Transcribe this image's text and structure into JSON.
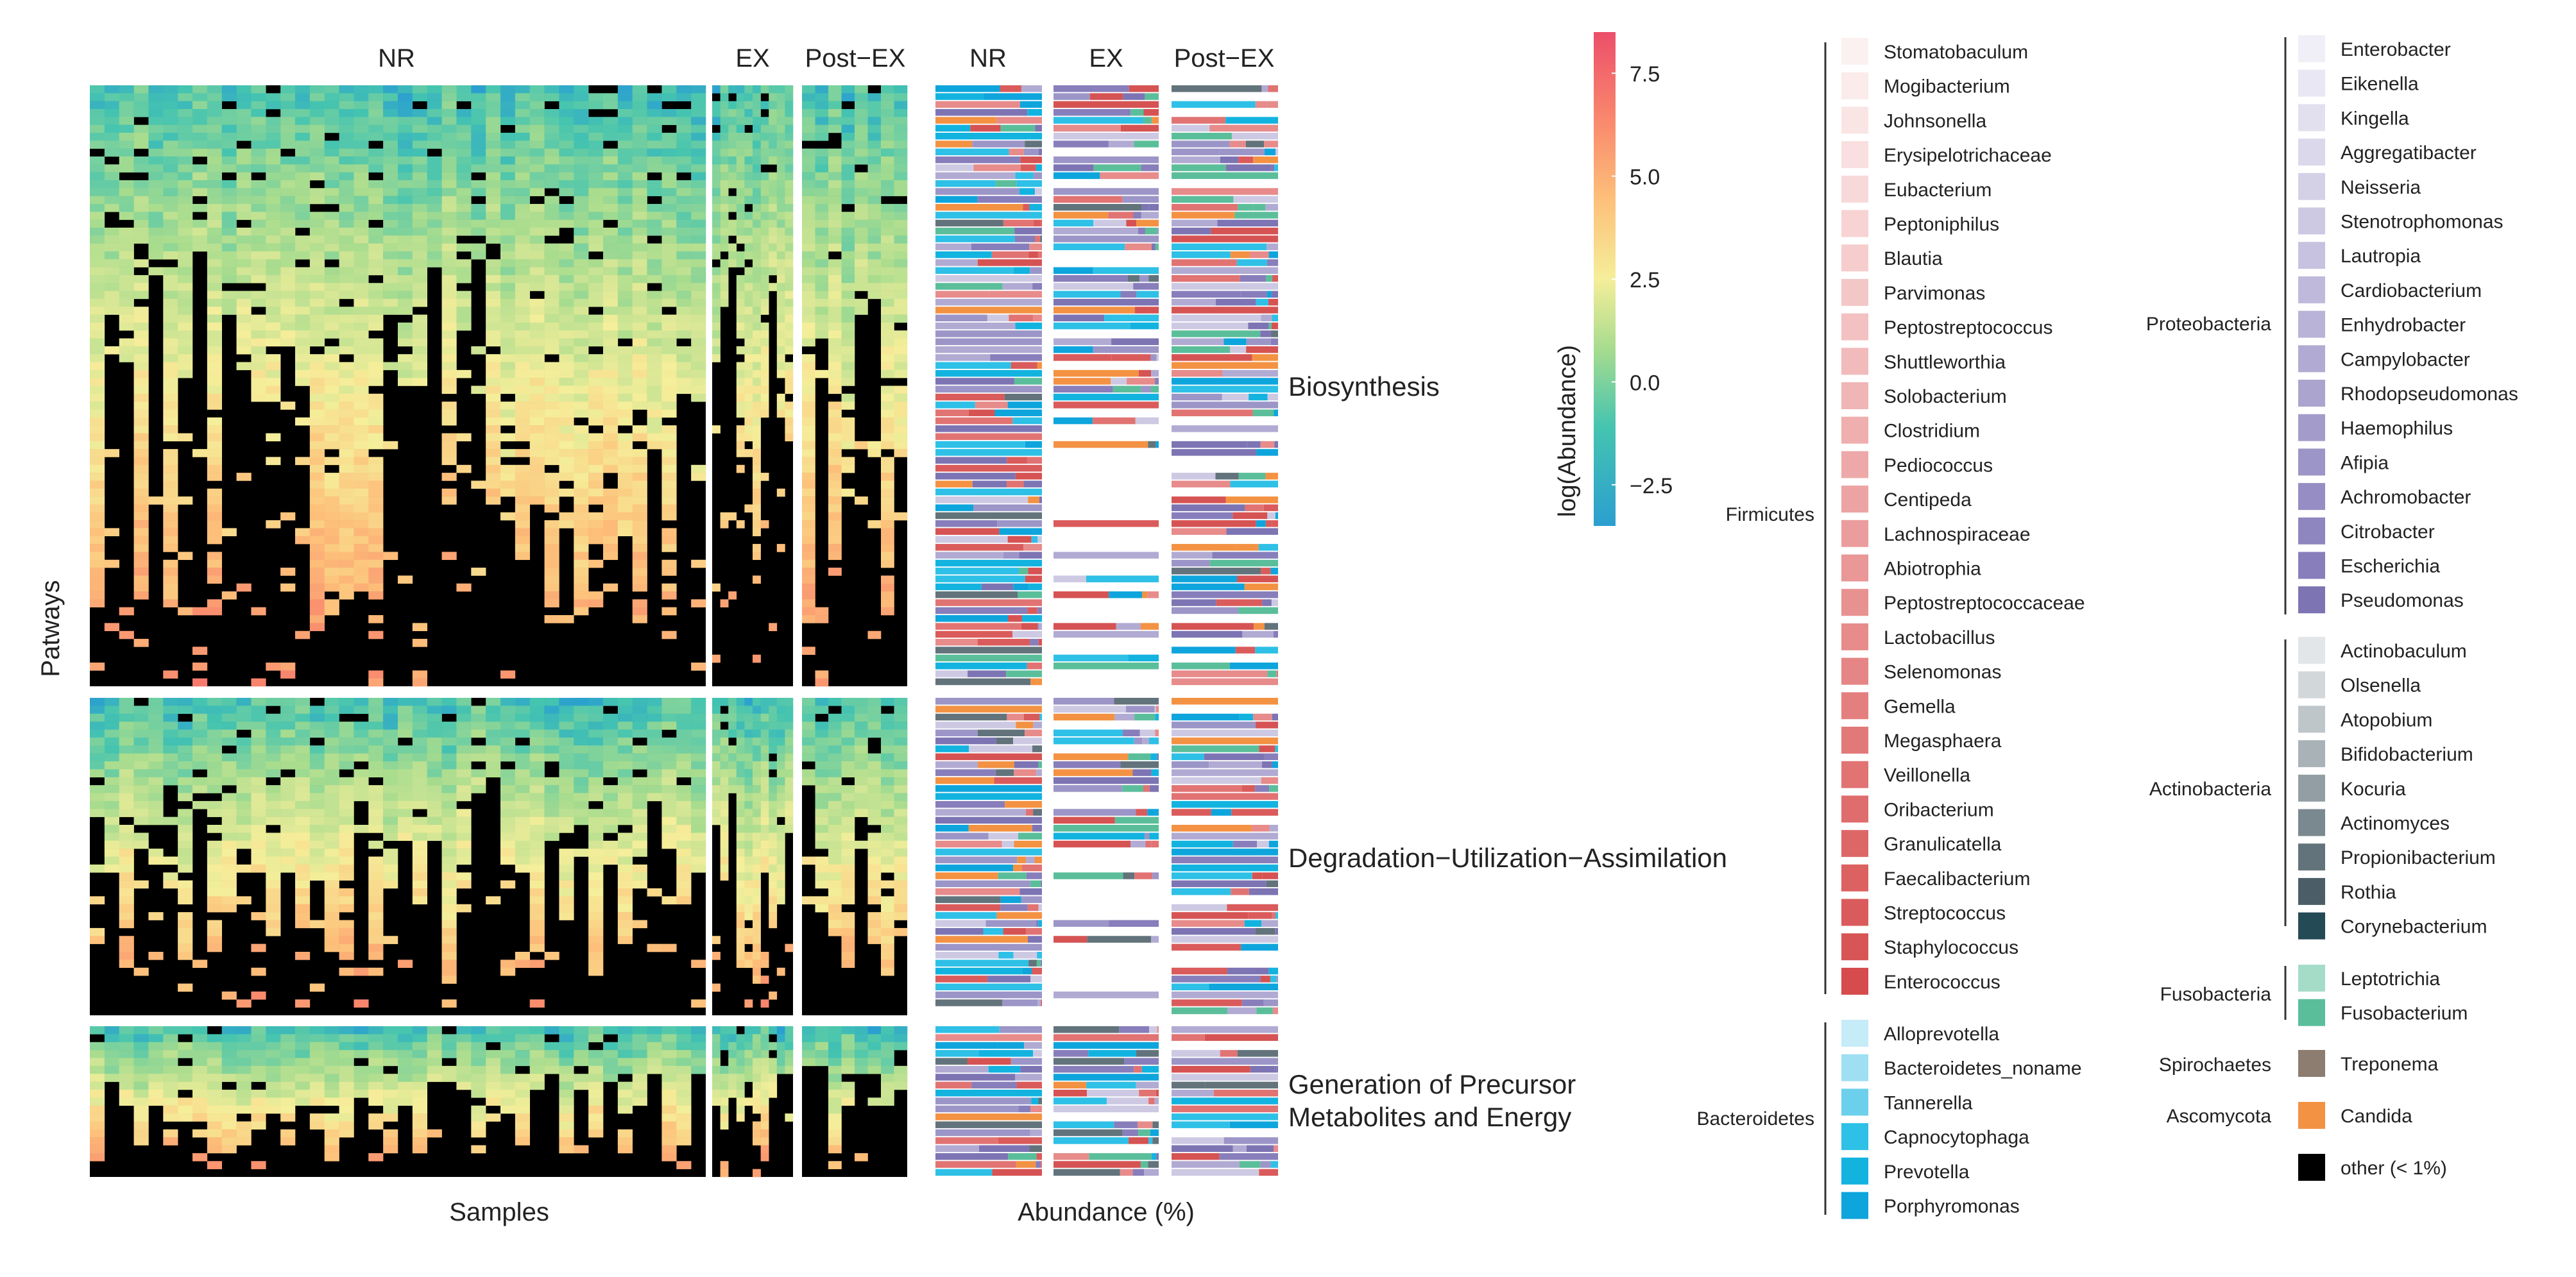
{
  "chart_data": [
    {
      "type": "heatmap",
      "title": "",
      "group_labels": [
        "NR",
        "EX",
        "Post−EX"
      ],
      "group_sample_counts": [
        42,
        10,
        8
      ],
      "row_sections": [
        {
          "name": "Biosynthesis",
          "rows": 76
        },
        {
          "name": "Degradation−Utilization−Assimilation",
          "rows": 40
        },
        {
          "name_lines": [
            "Generation of Precursor",
            "Metabolites and Energy"
          ],
          "rows": 19
        }
      ],
      "xlabel": "Samples",
      "ylabel": "Patways",
      "colorbar": {
        "title": "log(Abundance)",
        "ticks": [
          7.5,
          5.0,
          2.5,
          0.0,
          -2.5
        ],
        "tick_labels": [
          "7.5",
          "5.0",
          "2.5",
          "0.0",
          "−2.5"
        ],
        "range": [
          -3.5,
          8.5
        ],
        "colors": [
          "#2a9fd0",
          "#45c4b0",
          "#a8dc8e",
          "#f5ee9a",
          "#fdc07a",
          "#f9896d",
          "#ec4f6a"
        ]
      },
      "missing_color": "#000000"
    },
    {
      "type": "bar",
      "orientation": "horizontal-stacked",
      "group_labels": [
        "NR",
        "EX",
        "Post−EX"
      ],
      "xlabel": "Abundance (%)",
      "note": "Stacked bars per pathway showing contributing genus share (%), colored by genus legend."
    }
  ],
  "legend": {
    "phyla": [
      {
        "name": "Firmicutes",
        "genera": [
          {
            "name": "Stomatobaculum",
            "color": "#fcf1f1"
          },
          {
            "name": "Mogibacterium",
            "color": "#fbebeb"
          },
          {
            "name": "Johnsonella",
            "color": "#fae5e5"
          },
          {
            "name": "Erysipelotrichaceae",
            "color": "#f9dfdf"
          },
          {
            "name": "Eubacterium",
            "color": "#f8d9d9"
          },
          {
            "name": "Peptoniphilus",
            "color": "#f7d3d3"
          },
          {
            "name": "Blautia",
            "color": "#f5cdcd"
          },
          {
            "name": "Parvimonas",
            "color": "#f4c7c7"
          },
          {
            "name": "Peptostreptococcus",
            "color": "#f3c1c1"
          },
          {
            "name": "Shuttleworthia",
            "color": "#f1bbbb"
          },
          {
            "name": "Solobacterium",
            "color": "#f0b5b5"
          },
          {
            "name": "Clostridium",
            "color": "#efafaf"
          },
          {
            "name": "Pediococcus",
            "color": "#eda9a9"
          },
          {
            "name": "Centipeda",
            "color": "#eca3a3"
          },
          {
            "name": "Lachnospiraceae",
            "color": "#eb9d9d"
          },
          {
            "name": "Abiotrophia",
            "color": "#e99797"
          },
          {
            "name": "Peptostreptococcaceae",
            "color": "#e89191"
          },
          {
            "name": "Lactobacillus",
            "color": "#e78b8b"
          },
          {
            "name": "Selenomonas",
            "color": "#e58585"
          },
          {
            "name": "Gemella",
            "color": "#e47f7f"
          },
          {
            "name": "Megasphaera",
            "color": "#e27979"
          },
          {
            "name": "Veillonella",
            "color": "#e17373"
          },
          {
            "name": "Oribacterium",
            "color": "#df6d6d"
          },
          {
            "name": "Granulicatella",
            "color": "#dd6767"
          },
          {
            "name": "Faecalibacterium",
            "color": "#dc6161"
          },
          {
            "name": "Streptococcus",
            "color": "#da5b5b"
          },
          {
            "name": "Staphylococcus",
            "color": "#d85555"
          },
          {
            "name": "Enterococcus",
            "color": "#d64b4b"
          }
        ]
      },
      {
        "name": "Bacteroidetes",
        "genera": [
          {
            "name": "Alloprevotella",
            "color": "#c6ecf7"
          },
          {
            "name": "Bacteroidetes_noname",
            "color": "#9edff2"
          },
          {
            "name": "Tannerella",
            "color": "#6cd0ec"
          },
          {
            "name": "Capnocytophaga",
            "color": "#2ec0e6"
          },
          {
            "name": "Prevotella",
            "color": "#13b3e0"
          },
          {
            "name": "Porphyromonas",
            "color": "#0ea5dc"
          }
        ]
      },
      {
        "name": "Proteobacteria",
        "genera": [
          {
            "name": "Enterobacter",
            "color": "#f0eff7"
          },
          {
            "name": "Eikenella",
            "color": "#e9e7f3"
          },
          {
            "name": "Kingella",
            "color": "#e2e0ef"
          },
          {
            "name": "Aggregatibacter",
            "color": "#dbd8eb"
          },
          {
            "name": "Neisseria",
            "color": "#d4d1e7"
          },
          {
            "name": "Stenotrophomonas",
            "color": "#cdc9e3"
          },
          {
            "name": "Lautropia",
            "color": "#c6c2df"
          },
          {
            "name": "Cardiobacterium",
            "color": "#bfbadb"
          },
          {
            "name": "Enhydrobacter",
            "color": "#b8b3d7"
          },
          {
            "name": "Campylobacter",
            "color": "#b1abd3"
          },
          {
            "name": "Rhodopseudomonas",
            "color": "#aaa4cf"
          },
          {
            "name": "Haemophilus",
            "color": "#a39ccb"
          },
          {
            "name": "Afipia",
            "color": "#9c95c7"
          },
          {
            "name": "Achromobacter",
            "color": "#958dc3"
          },
          {
            "name": "Citrobacter",
            "color": "#8e86bf"
          },
          {
            "name": "Escherichia",
            "color": "#877ebb"
          },
          {
            "name": "Pseudomonas",
            "color": "#7d74b4"
          }
        ]
      },
      {
        "name": "Actinobacteria",
        "genera": [
          {
            "name": "Actinobaculum",
            "color": "#e3e6e8"
          },
          {
            "name": "Olsenella",
            "color": "#d2d7da"
          },
          {
            "name": "Atopobium",
            "color": "#bfc6ca"
          },
          {
            "name": "Bifidobacterium",
            "color": "#a9b2b7"
          },
          {
            "name": "Kocuria",
            "color": "#929ea4"
          },
          {
            "name": "Actinomyces",
            "color": "#7a888f"
          },
          {
            "name": "Propionibacterium",
            "color": "#62737b"
          },
          {
            "name": "Rothia",
            "color": "#4b5e67"
          },
          {
            "name": "Corynebacterium",
            "color": "#244a55"
          }
        ]
      },
      {
        "name": "Fusobacteria",
        "genera": [
          {
            "name": "Leptotrichia",
            "color": "#a5dcc8"
          },
          {
            "name": "Fusobacterium",
            "color": "#5bbe9a"
          }
        ]
      },
      {
        "name": "Spirochaetes",
        "genera": [
          {
            "name": "Treponema",
            "color": "#8c7d70"
          }
        ]
      },
      {
        "name": "Ascomycota",
        "genera": [
          {
            "name": "Candida",
            "color": "#f39243"
          }
        ]
      },
      {
        "name": "",
        "genera": [
          {
            "name": "other (< 1%)",
            "color": "#000000"
          }
        ]
      }
    ]
  }
}
